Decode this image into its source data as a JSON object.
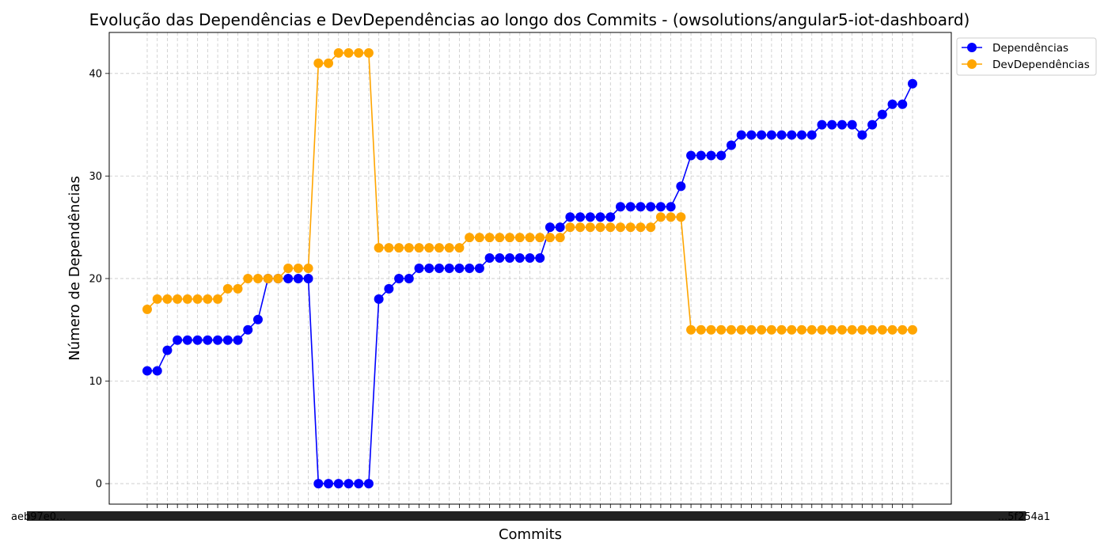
{
  "chart_data": {
    "type": "line",
    "title": "Evolução das Dependências e DevDependências ao longo dos Commits - (owsolutions/angular5-iot-dashboard)",
    "xlabel": "Commits",
    "ylabel": "Número de Dependências",
    "ylim": [
      -2,
      44
    ],
    "yticks": [
      0,
      10,
      20,
      30,
      40
    ],
    "grid": true,
    "legend_position": "top-right-outside",
    "x_tick_labels_visible": [
      "aeb97e0...",
      "...5f254a1"
    ],
    "series": [
      {
        "name": "Dependências",
        "color": "#0000ff",
        "values": [
          11,
          11,
          13,
          14,
          14,
          14,
          14,
          14,
          14,
          14,
          15,
          16,
          20,
          20,
          20,
          20,
          20,
          0,
          0,
          0,
          0,
          0,
          0,
          18,
          19,
          20,
          20,
          21,
          21,
          21,
          21,
          21,
          21,
          21,
          22,
          22,
          22,
          22,
          22,
          22,
          25,
          25,
          26,
          26,
          26,
          26,
          26,
          27,
          27,
          27,
          27,
          27,
          27,
          29,
          32,
          32,
          32,
          32,
          33,
          34,
          34,
          34,
          34,
          34,
          34,
          34,
          34,
          35,
          35,
          35,
          35,
          34,
          35,
          36,
          37,
          37,
          39
        ]
      },
      {
        "name": "DevDependências",
        "color": "#ffa500",
        "values": [
          17,
          18,
          18,
          18,
          18,
          18,
          18,
          18,
          19,
          19,
          20,
          20,
          20,
          20,
          21,
          21,
          21,
          41,
          41,
          42,
          42,
          42,
          42,
          23,
          23,
          23,
          23,
          23,
          23,
          23,
          23,
          23,
          24,
          24,
          24,
          24,
          24,
          24,
          24,
          24,
          24,
          24,
          25,
          25,
          25,
          25,
          25,
          25,
          25,
          25,
          25,
          26,
          26,
          26,
          15,
          15,
          15,
          15,
          15,
          15,
          15,
          15,
          15,
          15,
          15,
          15,
          15,
          15,
          15,
          15,
          15,
          15,
          15,
          15,
          15,
          15,
          15
        ]
      }
    ]
  }
}
